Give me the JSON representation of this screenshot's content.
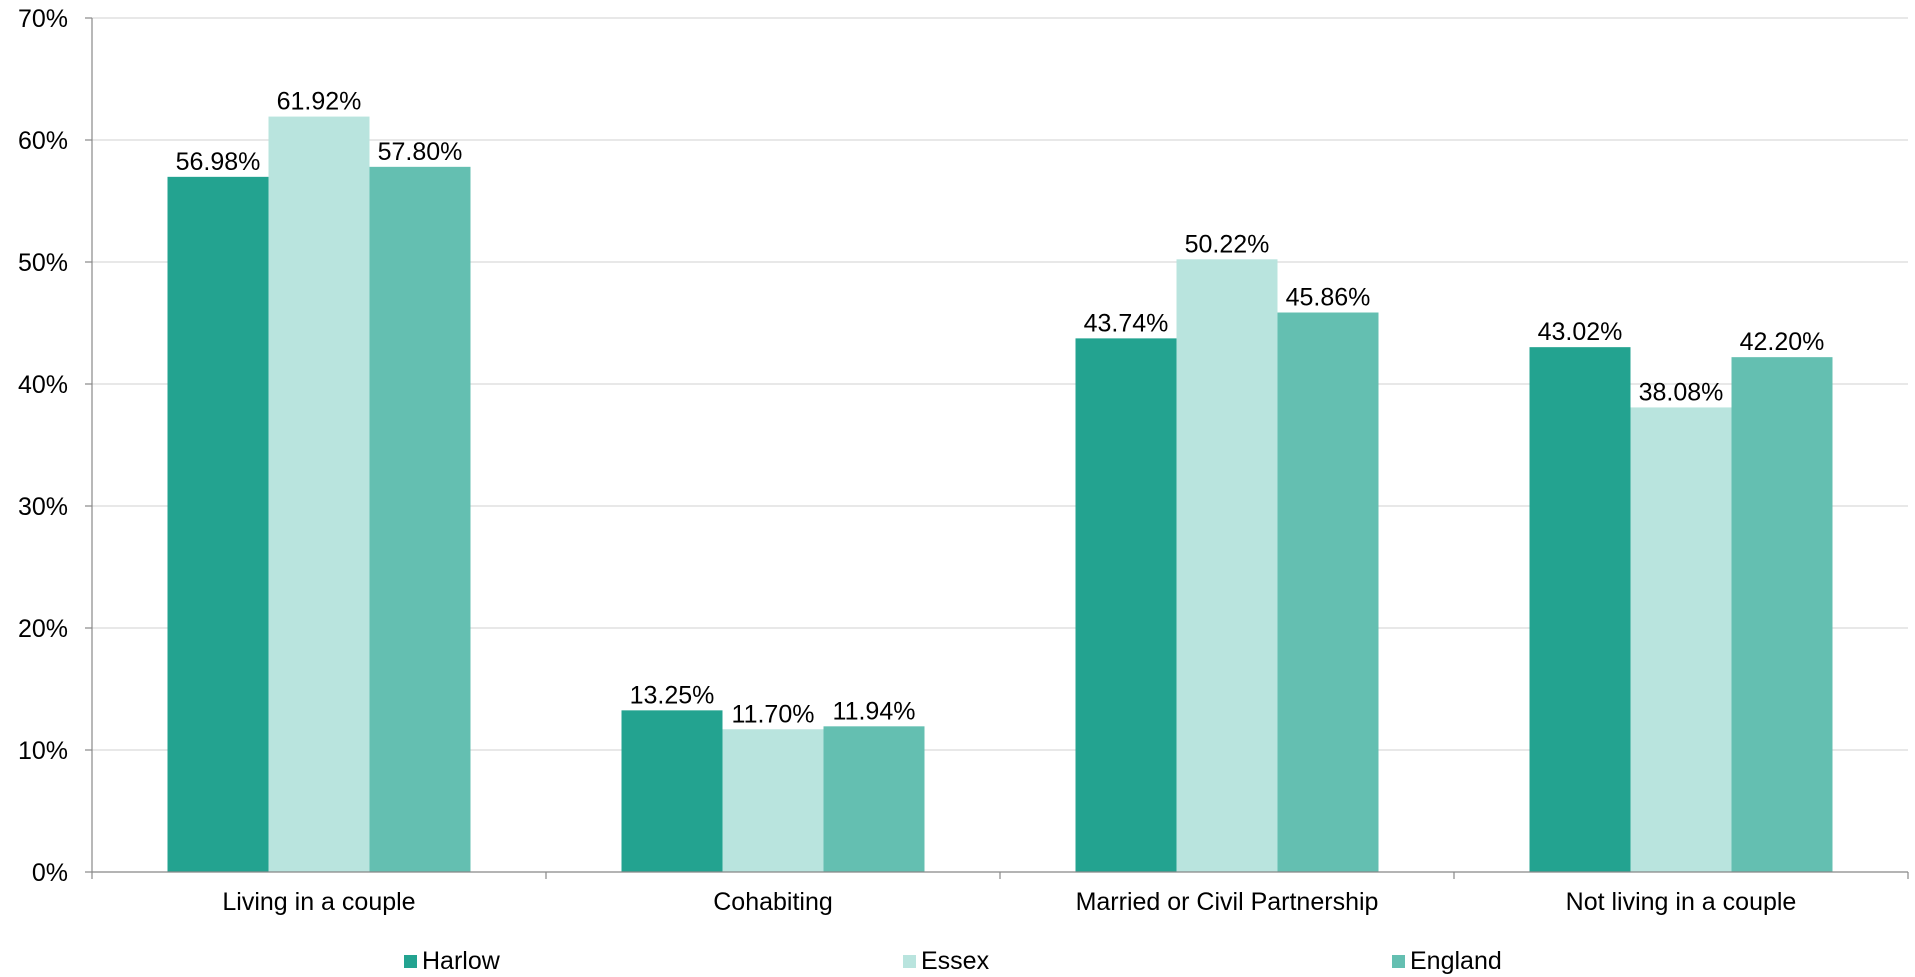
{
  "chart_data": {
    "type": "bar",
    "categories": [
      "Living in a couple",
      "Cohabiting",
      "Married or Civil Partnership",
      "Not living in a couple"
    ],
    "series": [
      {
        "name": "Harlow",
        "color": "#23a390",
        "values": [
          56.98,
          13.25,
          43.74,
          43.02
        ],
        "labels": [
          "56.98%",
          "13.25%",
          "43.74%",
          "43.02%"
        ]
      },
      {
        "name": "Essex",
        "color": "#b9e4de",
        "values": [
          61.92,
          11.7,
          50.22,
          38.08
        ],
        "labels": [
          "61.92%",
          "11.70%",
          "50.22%",
          "38.08%"
        ]
      },
      {
        "name": "England",
        "color": "#64bfb1",
        "values": [
          57.8,
          11.94,
          45.86,
          42.2
        ],
        "labels": [
          "57.80%",
          "11.94%",
          "45.86%",
          "42.20%"
        ]
      }
    ],
    "ylim": [
      0,
      70
    ],
    "yticks": [
      0,
      10,
      20,
      30,
      40,
      50,
      60,
      70
    ],
    "ytick_labels": [
      "0%",
      "10%",
      "20%",
      "30%",
      "40%",
      "50%",
      "60%",
      "70%"
    ],
    "grid": true,
    "legend_position": "bottom",
    "title": "",
    "xlabel": "",
    "ylabel": ""
  }
}
